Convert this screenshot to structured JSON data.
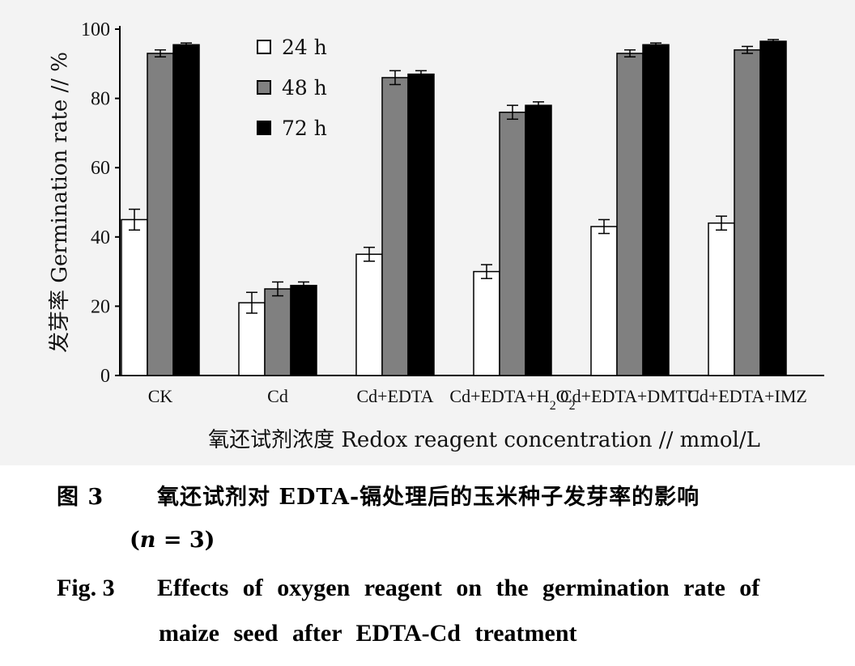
{
  "chart_data": {
    "type": "bar",
    "categories": [
      "CK",
      "Cd",
      "Cd+EDTA",
      "Cd+EDTA+H2O2",
      "Cd+EDTA+DMTU",
      "Cd+EDTA+IMZ"
    ],
    "series": [
      {
        "name": "24 h",
        "color": "#ffffff",
        "values": [
          45,
          21,
          35,
          30,
          43,
          44
        ],
        "errors": [
          3,
          3,
          2,
          2,
          2,
          2
        ]
      },
      {
        "name": "48 h",
        "color": "#808080",
        "values": [
          93,
          25,
          86,
          76,
          93,
          94
        ],
        "errors": [
          1,
          2,
          2,
          2,
          1,
          1
        ]
      },
      {
        "name": "72 h",
        "color": "#000000",
        "values": [
          95.5,
          26,
          87,
          78,
          95.5,
          96.5
        ],
        "errors": [
          0.5,
          1,
          1,
          1,
          0.5,
          0.5
        ]
      }
    ],
    "ylim": [
      0,
      100
    ],
    "yticks": [
      0,
      20,
      40,
      60,
      80,
      100
    ],
    "ylabel": "发芽率 Germination rate // %",
    "xlabel": "氧还试剂浓度 Redox reagent concentration // mmol/L",
    "legend_position": "top-left",
    "grid": false
  },
  "caption": {
    "cn_label": "图 3",
    "cn_line1": "氧还试剂对 EDTA-镉处理后的玉米种子发芽率的影响",
    "cn_line2_prefix": "(",
    "cn_line2_n": "n",
    "cn_line2_suffix": " = 3)",
    "en_label": "Fig. 3",
    "en_line1": "Effects of oxygen reagent on the germination rate of",
    "en_line2": "maize seed after EDTA-Cd treatment"
  }
}
